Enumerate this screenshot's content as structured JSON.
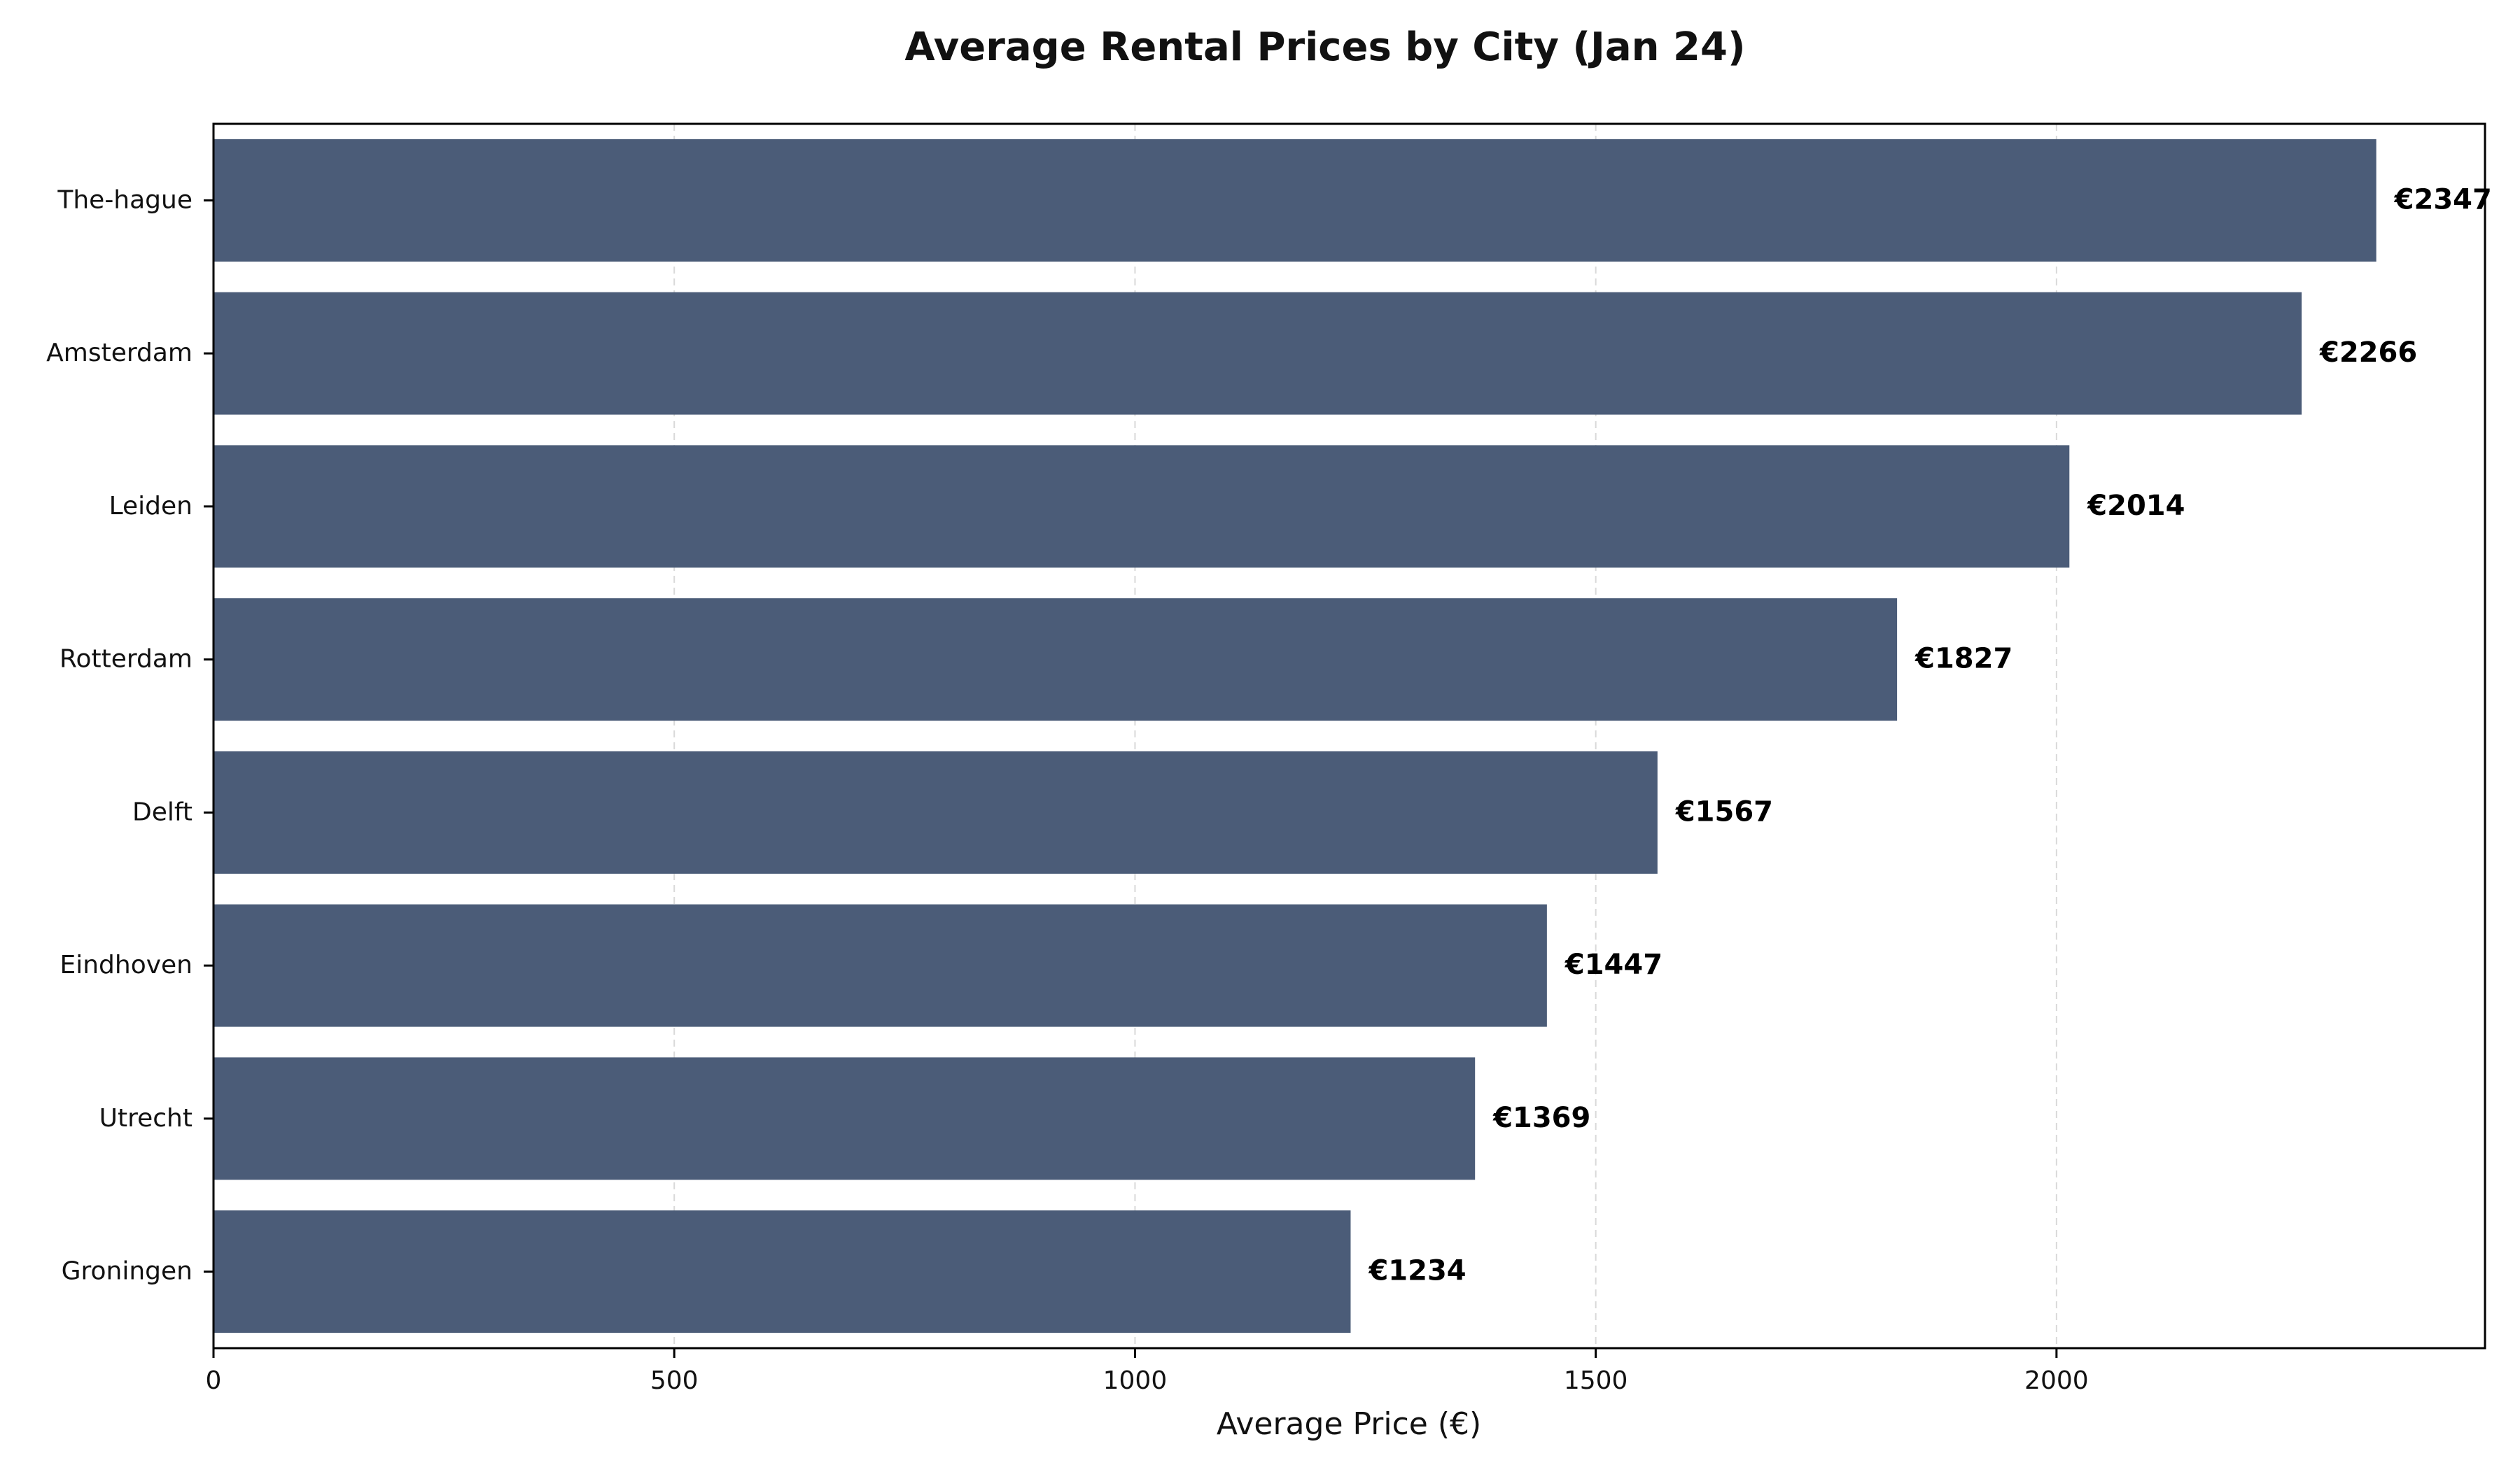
{
  "chart_data": {
    "type": "bar",
    "orientation": "horizontal",
    "title": "Average Rental Prices by City (Jan 24)",
    "xlabel": "Average Price (€)",
    "ylabel": "",
    "categories": [
      "The-hague",
      "Amsterdam",
      "Leiden",
      "Rotterdam",
      "Delft",
      "Eindhoven",
      "Utrecht",
      "Groningen"
    ],
    "values": [
      2347,
      2266,
      2014,
      1827,
      1567,
      1447,
      1369,
      1234
    ],
    "data_labels": [
      "€2347",
      "€2266",
      "€2014",
      "€1827",
      "€1567",
      "€1447",
      "€1369",
      "€1234"
    ],
    "x_ticks": [
      0,
      500,
      1000,
      1500,
      2000
    ],
    "x_tick_labels": [
      "0",
      "500",
      "1000",
      "1500",
      "2000"
    ],
    "xlim": [
      0,
      2465
    ],
    "grid": "x-dashed",
    "bar_color": "#4b5c78"
  }
}
